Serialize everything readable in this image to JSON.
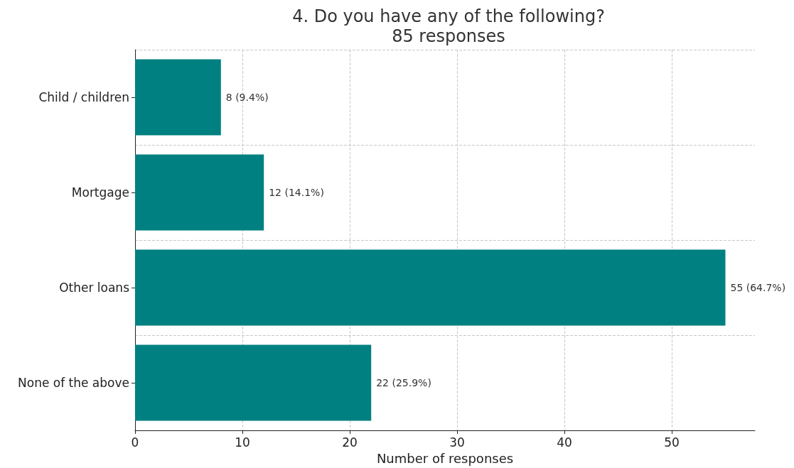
{
  "chart_data": {
    "type": "bar",
    "orientation": "horizontal",
    "title": "4. Do you have any of the following?",
    "subtitle": "85 responses",
    "xlabel": "Number of responses",
    "categories": [
      "Child / children",
      "Mortgage",
      "Other loans",
      "None of the above"
    ],
    "values": [
      8,
      12,
      55,
      22
    ],
    "color": "#008080",
    "value_labels": [
      "8 (9.4%)",
      "12 (14.1%)",
      "55 (64.7%)",
      "22 (25.9%)"
    ],
    "xlim": [
      0,
      57.75
    ],
    "xticks": [
      0,
      10,
      20,
      30,
      40,
      50
    ],
    "grid": true
  }
}
